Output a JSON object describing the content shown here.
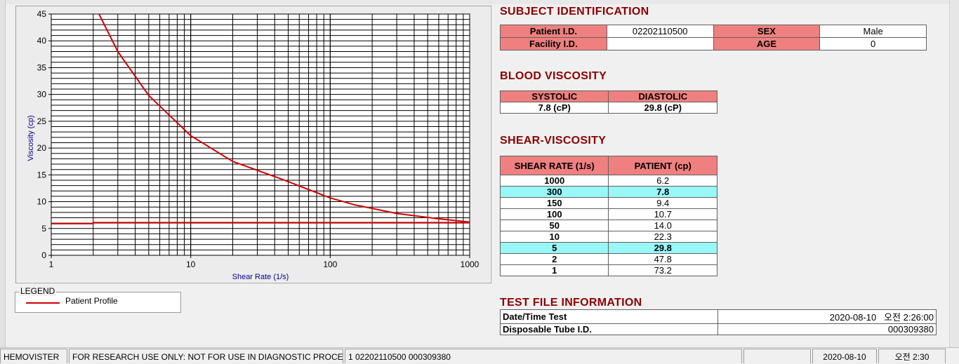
{
  "chart_data": {
    "type": "line",
    "xlabel": "Shear Rate (1/s)",
    "ylabel": "Viscosity (cp)",
    "x_scale": "log",
    "xlim": [
      1,
      1000
    ],
    "ylim": [
      0,
      45
    ],
    "x_ticks": [
      "1",
      "10",
      "100",
      "1000"
    ],
    "y_ticks": [
      "0",
      "5",
      "10",
      "15",
      "20",
      "25",
      "30",
      "35",
      "40",
      "45"
    ],
    "grid": true,
    "series": [
      {
        "name": "Patient Profile",
        "color": "#d40000",
        "points": [
          [
            2.2,
            45.0
          ],
          [
            3,
            38.0
          ],
          [
            5,
            29.8
          ],
          [
            10,
            22.3
          ],
          [
            20,
            17.5
          ],
          [
            45,
            14.2
          ],
          [
            100,
            10.7
          ],
          [
            150,
            9.4
          ],
          [
            300,
            7.8
          ],
          [
            600,
            6.8
          ],
          [
            1000,
            6.2
          ]
        ]
      },
      {
        "name": "",
        "color": "#d40000",
        "points": [
          [
            1,
            5.9
          ],
          [
            2,
            5.9
          ],
          [
            2,
            6.1
          ],
          [
            1000,
            6.1
          ]
        ]
      }
    ]
  },
  "legend": {
    "title": "LEGEND",
    "entries": [
      "Patient Profile"
    ]
  },
  "subject": {
    "title": "SUBJECT IDENTIFICATION",
    "patient_id_label": "Patient I.D.",
    "patient_id": "02202110500",
    "sex_label": "SEX",
    "sex": "Male",
    "facility_label": "Facility I.D.",
    "facility": "",
    "age_label": "AGE",
    "age": "0"
  },
  "blood": {
    "title": "BLOOD VISCOSITY",
    "systolic_label": "SYSTOLIC",
    "diastolic_label": "DIASTOLIC",
    "systolic": "7.8 (cP)",
    "diastolic": "29.8 (cP)"
  },
  "shear": {
    "title": "SHEAR-VISCOSITY",
    "col1": "SHEAR RATE (1/s)",
    "col2": "PATIENT (cp)",
    "rows": [
      {
        "rate": "1000",
        "value": "6.2"
      },
      {
        "rate": "300",
        "value": "7.8"
      },
      {
        "rate": "150",
        "value": "9.4"
      },
      {
        "rate": "100",
        "value": "10.7"
      },
      {
        "rate": "50",
        "value": "14.0"
      },
      {
        "rate": "10",
        "value": "22.3"
      },
      {
        "rate": "5",
        "value": "29.8"
      },
      {
        "rate": "2",
        "value": "47.8"
      },
      {
        "rate": "1",
        "value": "73.2"
      }
    ]
  },
  "testfile": {
    "title": "TEST FILE INFORMATION",
    "datetime_label": "Date/Time Test",
    "datetime": "2020-08-10   오전 2:26:00",
    "tube_label": "Disposable Tube I.D.",
    "tube": "000309380"
  },
  "status": {
    "app": "HEMOVISTER",
    "notice": "FOR RESEARCH USE ONLY: NOT FOR USE IN DIAGNOSTIC PROCEDURES",
    "record": "1  02202110500  000309380",
    "date": "2020-08-10",
    "time": "오전 2:30"
  }
}
